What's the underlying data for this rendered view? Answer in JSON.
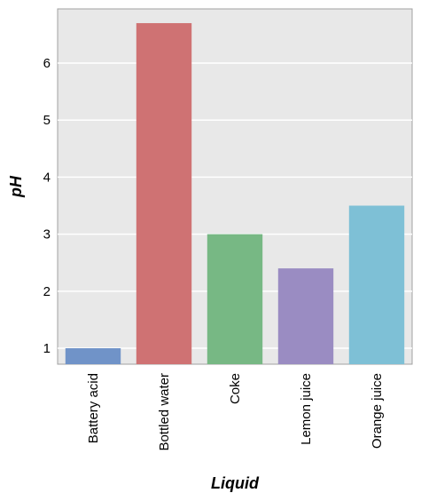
{
  "chart_data": {
    "type": "bar",
    "title": "",
    "xlabel": "Liquid",
    "ylabel": "pH",
    "categories": [
      "Battery acid",
      "Bottled water",
      "Coke",
      "Lemon juice",
      "Orange juice"
    ],
    "values": [
      1.0,
      6.7,
      3.0,
      2.4,
      3.5
    ],
    "colors": [
      "#7093c8",
      "#cf7273",
      "#77b884",
      "#9a8cc2",
      "#7ec0d6"
    ],
    "ylim": [
      0.72,
      6.95
    ],
    "yticks": [
      1,
      2,
      3,
      4,
      5,
      6
    ],
    "grid": true,
    "legend": "none",
    "background": "#e8e8e8"
  }
}
